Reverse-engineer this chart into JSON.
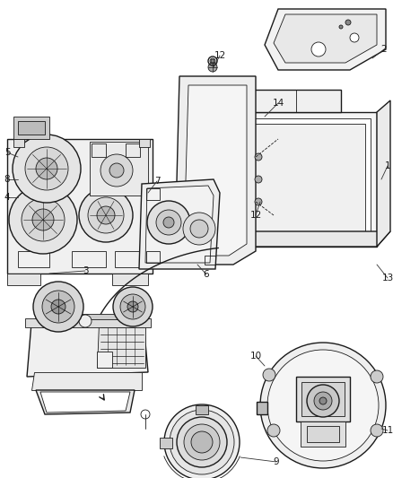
{
  "bg": "#ffffff",
  "lc": "#1a1a1a",
  "fig_w": 4.38,
  "fig_h": 5.33,
  "dpi": 100
}
